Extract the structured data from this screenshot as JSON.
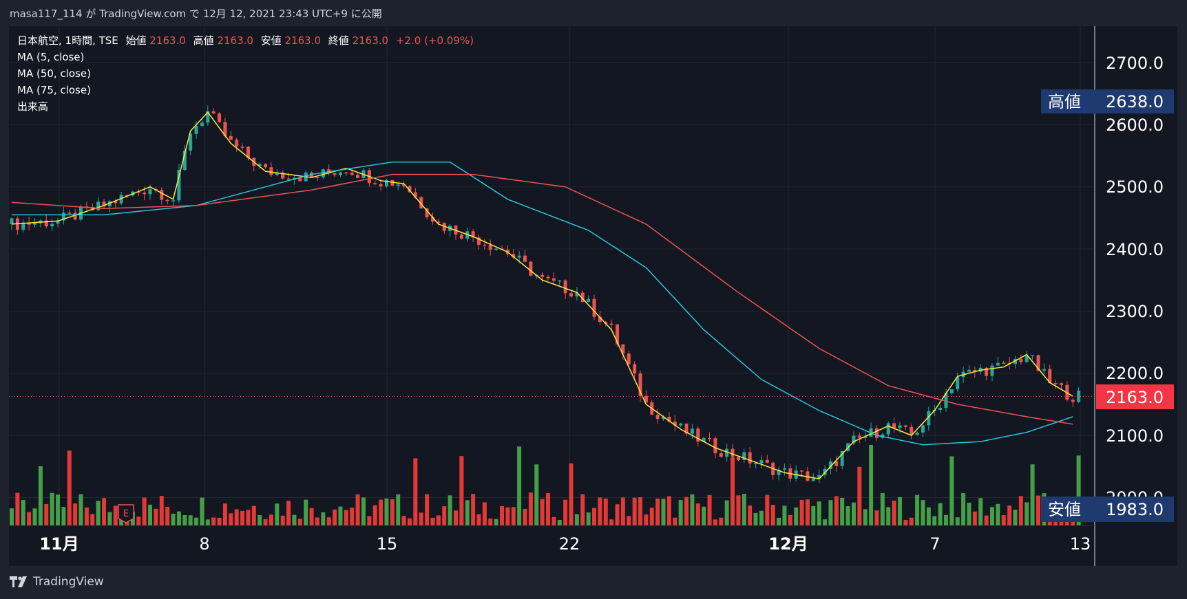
{
  "caption": {
    "text": "masa117_114 が TradingView.com で 12月 12, 2021 23:43 UTC+9 に公開"
  },
  "legend": {
    "symbol": "日本航空, 1時間, TSE",
    "open_label": "始値",
    "open_value": "2163.0",
    "high_label": "高値",
    "high_value": "2163.0",
    "low_label": "安値",
    "low_value": "2163.0",
    "close_label": "終値",
    "close_value": "2163.0",
    "change": "+2.0 (+0.09%)",
    "ma1": "MA (5, close)",
    "ma2": "MA (50, close)",
    "ma3": "MA (75, close)",
    "volume": "出来高"
  },
  "price_axis": {
    "ticks": [
      "2700.0",
      "2600.0",
      "2500.0",
      "2400.0",
      "2300.0",
      "2200.0",
      "2100.0",
      "2000.0"
    ],
    "high_label": "高値",
    "high_value": "2638.0",
    "low_label": "安値",
    "low_value": "1983.0",
    "last_value": "2163.0"
  },
  "time_axis": {
    "ticks": [
      "11月",
      "8",
      "15",
      "22",
      "12月",
      "7",
      "13"
    ]
  },
  "earnings_marker": "E",
  "footer": {
    "brand": "TradingView"
  },
  "colors": {
    "background": "#131722",
    "frame": "#1e222d",
    "up": "#26a69a",
    "down": "#ef5350",
    "ma5": "#ffeb3b",
    "ma50": "#26c6da",
    "ma75": "#ef5350",
    "vol_up": "#43a047",
    "vol_down": "#e53935",
    "badge_navy": "#1e3a6e",
    "badge_last": "#f23645"
  },
  "chart_data": {
    "type": "candlestick",
    "title": "日本航空, 1時間, TSE",
    "ylim": [
      1983,
      2730
    ],
    "x_ticks": [
      "11月",
      "8",
      "15",
      "22",
      "12月",
      "7",
      "13"
    ],
    "series": [
      {
        "name": "MA (5, close)",
        "values": [
          [
            0,
            2440
          ],
          [
            8,
            2445
          ],
          [
            16,
            2470
          ],
          [
            24,
            2500
          ],
          [
            28,
            2480
          ],
          [
            31,
            2590
          ],
          [
            34,
            2620
          ],
          [
            38,
            2570
          ],
          [
            44,
            2525
          ],
          [
            52,
            2515
          ],
          [
            58,
            2530
          ],
          [
            64,
            2510
          ],
          [
            68,
            2505
          ],
          [
            74,
            2440
          ],
          [
            80,
            2420
          ],
          [
            86,
            2395
          ],
          [
            92,
            2350
          ],
          [
            98,
            2330
          ],
          [
            104,
            2270
          ],
          [
            110,
            2150
          ],
          [
            116,
            2110
          ],
          [
            122,
            2080
          ],
          [
            128,
            2060
          ],
          [
            134,
            2040
          ],
          [
            140,
            2030
          ],
          [
            146,
            2090
          ],
          [
            152,
            2115
          ],
          [
            156,
            2100
          ],
          [
            160,
            2140
          ],
          [
            164,
            2195
          ],
          [
            168,
            2205
          ],
          [
            172,
            2210
          ],
          [
            176,
            2230
          ],
          [
            180,
            2185
          ],
          [
            184,
            2163
          ]
        ]
      },
      {
        "name": "MA (50, close)",
        "values": [
          [
            0,
            2455
          ],
          [
            16,
            2455
          ],
          [
            32,
            2470
          ],
          [
            52,
            2520
          ],
          [
            66,
            2540
          ],
          [
            76,
            2540
          ],
          [
            86,
            2480
          ],
          [
            100,
            2430
          ],
          [
            110,
            2370
          ],
          [
            120,
            2270
          ],
          [
            130,
            2190
          ],
          [
            140,
            2140
          ],
          [
            150,
            2100
          ],
          [
            158,
            2085
          ],
          [
            168,
            2090
          ],
          [
            176,
            2105
          ],
          [
            184,
            2130
          ]
        ]
      },
      {
        "name": "MA (75, close)",
        "values": [
          [
            0,
            2475
          ],
          [
            16,
            2465
          ],
          [
            32,
            2470
          ],
          [
            52,
            2495
          ],
          [
            66,
            2520
          ],
          [
            80,
            2520
          ],
          [
            96,
            2500
          ],
          [
            110,
            2440
          ],
          [
            126,
            2330
          ],
          [
            140,
            2240
          ],
          [
            152,
            2180
          ],
          [
            164,
            2150
          ],
          [
            176,
            2130
          ],
          [
            184,
            2118
          ]
        ]
      }
    ],
    "price_range": {
      "high": 2638.0,
      "low": 1983.0,
      "last": 2163.0
    }
  }
}
